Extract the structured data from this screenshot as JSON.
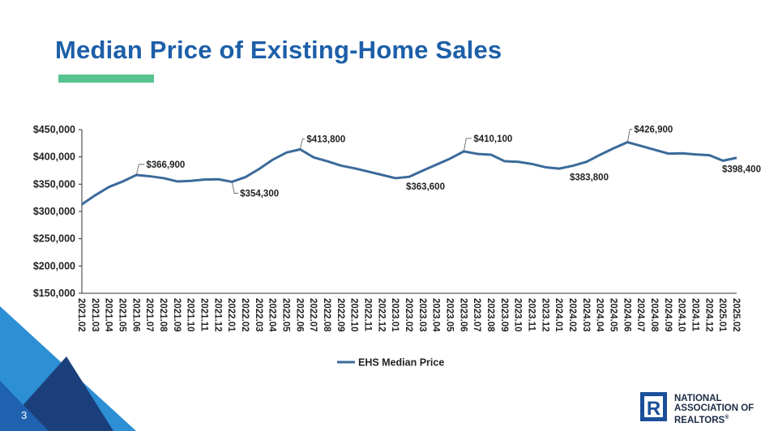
{
  "slide": {
    "title": "Median Price of Existing-Home Sales",
    "page_number": "3",
    "logo": {
      "line1": "NATIONAL",
      "line2": "ASSOCIATION OF",
      "line3": "REALTORS",
      "mark": "®"
    }
  },
  "colors": {
    "title": "#1d5fa8",
    "accent_bar": "#58c48f",
    "series": "#3b6a9a",
    "corner_light": "#2d8fd4",
    "corner_dark": "#1b3f7a",
    "logo": "#1b2a44"
  },
  "chart_data": {
    "type": "line",
    "x": [
      "2021.02",
      "2021.03",
      "2021.04",
      "2021.05",
      "2021.06",
      "2021.07",
      "2021.08",
      "2021.09",
      "2021.10",
      "2021.11",
      "2021.12",
      "2022.01",
      "2022.02",
      "2022.03",
      "2022.04",
      "2022.05",
      "2022.06",
      "2022.07",
      "2022.08",
      "2022.09",
      "2022.10",
      "2022.11",
      "2022.12",
      "2023.01",
      "2023.02",
      "2023.03",
      "2023.04",
      "2023.05",
      "2023.06",
      "2023.07",
      "2023.08",
      "2023.09",
      "2023.10",
      "2023.11",
      "2023.12",
      "2024.01",
      "2024.02",
      "2024.03",
      "2024.04",
      "2024.05",
      "2024.06",
      "2024.07",
      "2024.08",
      "2024.09",
      "2024.10",
      "2024.11",
      "2024.12",
      "2025.01",
      "2025.02"
    ],
    "series": [
      {
        "name": "EHS Median Price",
        "values": [
          313000,
          330000,
          345000,
          355000,
          366900,
          364500,
          361000,
          355000,
          356000,
          358500,
          359000,
          354300,
          363000,
          378000,
          395000,
          408000,
          413800,
          399000,
          392000,
          384000,
          379000,
          373000,
          367000,
          361000,
          363600,
          375000,
          386000,
          397000,
          410100,
          405500,
          404000,
          392000,
          391000,
          387000,
          381000,
          378500,
          383800,
          391000,
          404000,
          416000,
          426900,
          420000,
          413000,
          406000,
          406500,
          404500,
          403000,
          393000,
          398400
        ]
      }
    ],
    "annotations": [
      {
        "x": "2021.06",
        "label": "$366,900"
      },
      {
        "x": "2022.01",
        "label": "$354,300"
      },
      {
        "x": "2022.06",
        "label": "$413,800"
      },
      {
        "x": "2023.02",
        "label": "$363,600"
      },
      {
        "x": "2023.06",
        "label": "$410,100"
      },
      {
        "x": "2024.02",
        "label": "$383,800"
      },
      {
        "x": "2024.06",
        "label": "$426,900"
      },
      {
        "x": "2025.02",
        "label": "$398,400"
      }
    ],
    "yticks": [
      "$450,000",
      "$400,000",
      "$350,000",
      "$300,000",
      "$250,000",
      "$200,000",
      "$150,000"
    ],
    "ylim": [
      150000,
      450000
    ],
    "grid": false,
    "legend": "bottom-center"
  }
}
